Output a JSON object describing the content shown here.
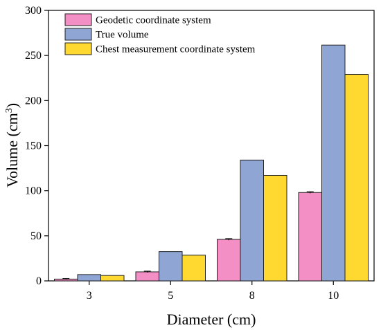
{
  "chart_data": {
    "type": "bar",
    "categories": [
      "3",
      "5",
      "8",
      "10"
    ],
    "series": [
      {
        "name": "Geodetic coordinate system",
        "values": [
          2,
          10,
          46,
          98
        ],
        "errors": [
          0.6,
          0.8,
          0.9,
          0.9
        ],
        "color": "#f48fc6"
      },
      {
        "name": "True volume",
        "values": [
          7,
          32.5,
          134,
          261.5
        ],
        "color": "#8fa6d4"
      },
      {
        "name": "Chest measurement coordinate system",
        "values": [
          6,
          28.5,
          117,
          229
        ],
        "color": "#ffd92f"
      }
    ],
    "xlabel": "Diameter (cm)",
    "ylabel": {
      "main": "Volume (cm",
      "sup": "3",
      "end": ")"
    },
    "ylim": [
      0,
      300
    ],
    "yticks": [
      0,
      50,
      100,
      150,
      200,
      250,
      300
    ],
    "grid": false,
    "legend": "top-left"
  }
}
